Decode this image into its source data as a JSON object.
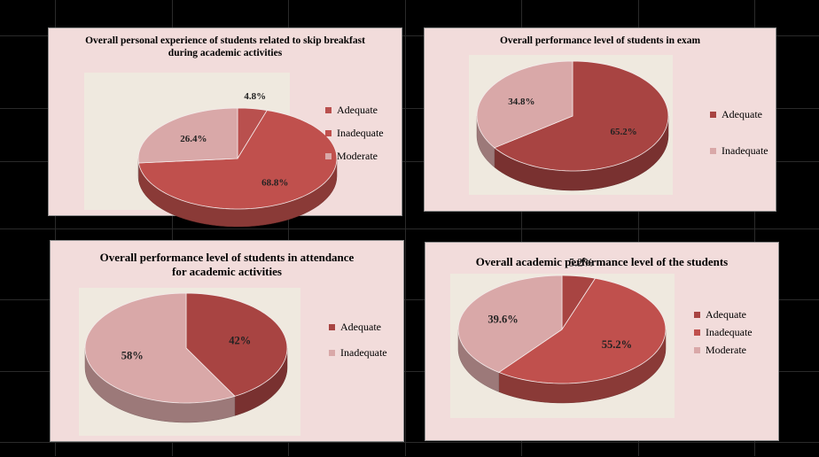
{
  "chart_data": [
    {
      "type": "pie",
      "title": "Overall personal experience of students related to skip breakfast during academic activities",
      "categories": [
        "Adequate",
        "Inadequate",
        "Moderate"
      ],
      "values": [
        4.8,
        68.8,
        26.4
      ],
      "data_labels": [
        "4.8%",
        "68.8%",
        "26.4%"
      ],
      "colors": [
        "#b9504e",
        "#c0504d",
        "#d9a8a8"
      ],
      "legend_position": "right"
    },
    {
      "type": "pie",
      "title": "Overall performance level of students in exam",
      "categories": [
        "Adequate",
        "Inadequate"
      ],
      "values": [
        65.2,
        34.8
      ],
      "data_labels": [
        "65.2%",
        "34.8%"
      ],
      "colors": [
        "#a84442",
        "#d9a8a8"
      ],
      "legend_position": "right"
    },
    {
      "type": "pie",
      "title": "Overall performance level of students in attendance for academic activities",
      "categories": [
        "Adequate",
        "Inadequate"
      ],
      "values": [
        42,
        58
      ],
      "data_labels": [
        "42%",
        "58%"
      ],
      "colors": [
        "#a84442",
        "#d9a8a8"
      ],
      "legend_position": "right"
    },
    {
      "type": "pie",
      "title": "Overall academic performance level of the students",
      "categories": [
        "Adequate",
        "Inadequate",
        "Moderate"
      ],
      "values": [
        5.2,
        55.2,
        39.6
      ],
      "data_labels": [
        "5.2%",
        "55.2%",
        "39.6%"
      ],
      "colors": [
        "#a84442",
        "#c0504d",
        "#d9a8a8"
      ],
      "legend_position": "right"
    }
  ]
}
